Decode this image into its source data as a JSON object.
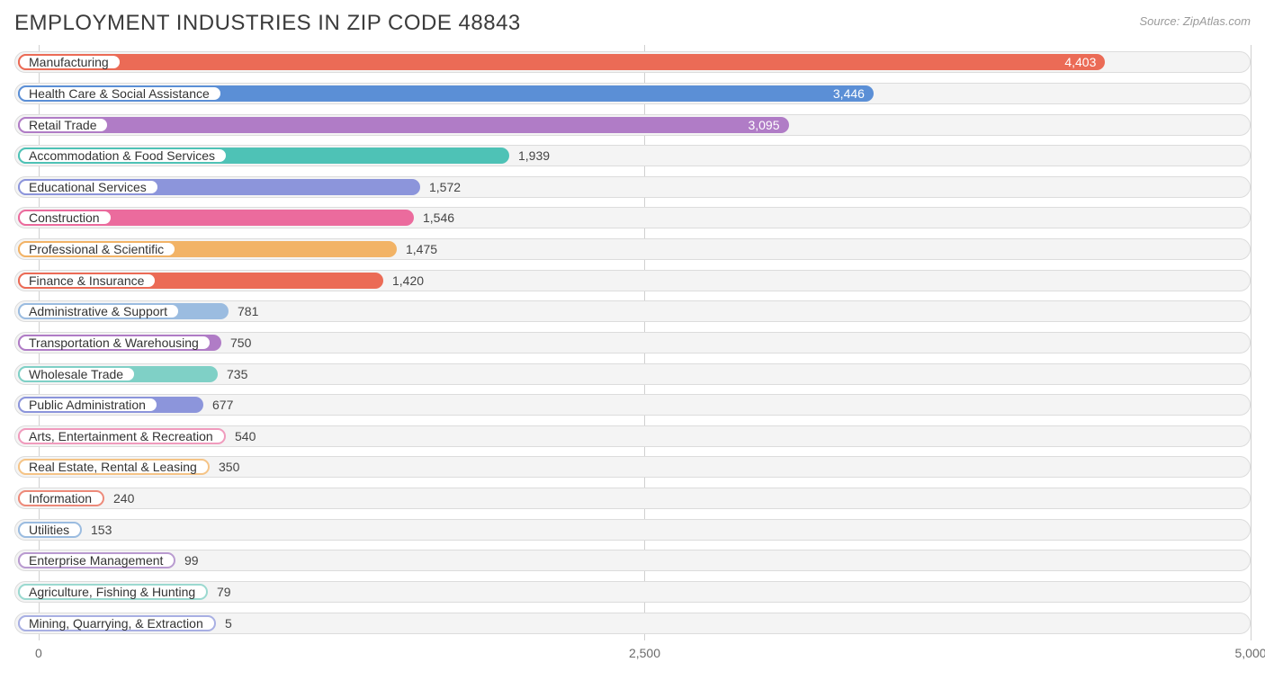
{
  "title": "EMPLOYMENT INDUSTRIES IN ZIP CODE 48843",
  "source_prefix": "Source: ",
  "source_name": "ZipAtlas.com",
  "chart": {
    "type": "bar-horizontal",
    "x_min": -100,
    "x_max": 5000,
    "x_ticks": [
      {
        "value": 0,
        "label": "0"
      },
      {
        "value": 2500,
        "label": "2,500"
      },
      {
        "value": 5000,
        "label": "5,000"
      }
    ],
    "track_bg": "#f4f4f4",
    "track_border": "#dcdcdc",
    "grid_color": "#d0d0d0",
    "label_fontsize": 14,
    "value_fontsize": 14,
    "title_fontsize": 24,
    "title_color": "#3b3b3b",
    "bars": [
      {
        "label": "Manufacturing",
        "value": 4403,
        "display": "4,403",
        "color": "#eb6b56",
        "value_inside": true
      },
      {
        "label": "Health Care & Social Assistance",
        "value": 3446,
        "display": "3,446",
        "color": "#5b8fd6",
        "value_inside": true
      },
      {
        "label": "Retail Trade",
        "value": 3095,
        "display": "3,095",
        "color": "#b07cc6",
        "value_inside": true
      },
      {
        "label": "Accommodation & Food Services",
        "value": 1939,
        "display": "1,939",
        "color": "#4ec2b6",
        "value_inside": false
      },
      {
        "label": "Educational Services",
        "value": 1572,
        "display": "1,572",
        "color": "#8c95db",
        "value_inside": false
      },
      {
        "label": "Construction",
        "value": 1546,
        "display": "1,546",
        "color": "#eb6b9d",
        "value_inside": false
      },
      {
        "label": "Professional & Scientific",
        "value": 1475,
        "display": "1,475",
        "color": "#f2b366",
        "value_inside": false
      },
      {
        "label": "Finance & Insurance",
        "value": 1420,
        "display": "1,420",
        "color": "#eb6b56",
        "value_inside": false
      },
      {
        "label": "Administrative & Support",
        "value": 781,
        "display": "781",
        "color": "#9bbce0",
        "value_inside": false
      },
      {
        "label": "Transportation & Warehousing",
        "value": 750,
        "display": "750",
        "color": "#b07cc6",
        "value_inside": false
      },
      {
        "label": "Wholesale Trade",
        "value": 735,
        "display": "735",
        "color": "#7fd0c6",
        "value_inside": false
      },
      {
        "label": "Public Administration",
        "value": 677,
        "display": "677",
        "color": "#8c95db",
        "value_inside": false
      },
      {
        "label": "Arts, Entertainment & Recreation",
        "value": 540,
        "display": "540",
        "color": "#f09bbd",
        "value_inside": false
      },
      {
        "label": "Real Estate, Rental & Leasing",
        "value": 350,
        "display": "350",
        "color": "#f5c487",
        "value_inside": false
      },
      {
        "label": "Information",
        "value": 240,
        "display": "240",
        "color": "#ed8a7a",
        "value_inside": false
      },
      {
        "label": "Utilities",
        "value": 153,
        "display": "153",
        "color": "#9bbce0",
        "value_inside": false
      },
      {
        "label": "Enterprise Management",
        "value": 99,
        "display": "99",
        "color": "#b99bd0",
        "value_inside": false
      },
      {
        "label": "Agriculture, Fishing & Hunting",
        "value": 79,
        "display": "79",
        "color": "#9bd9d0",
        "value_inside": false
      },
      {
        "label": "Mining, Quarrying, & Extraction",
        "value": 5,
        "display": "5",
        "color": "#a8afe3",
        "value_inside": false
      }
    ]
  }
}
